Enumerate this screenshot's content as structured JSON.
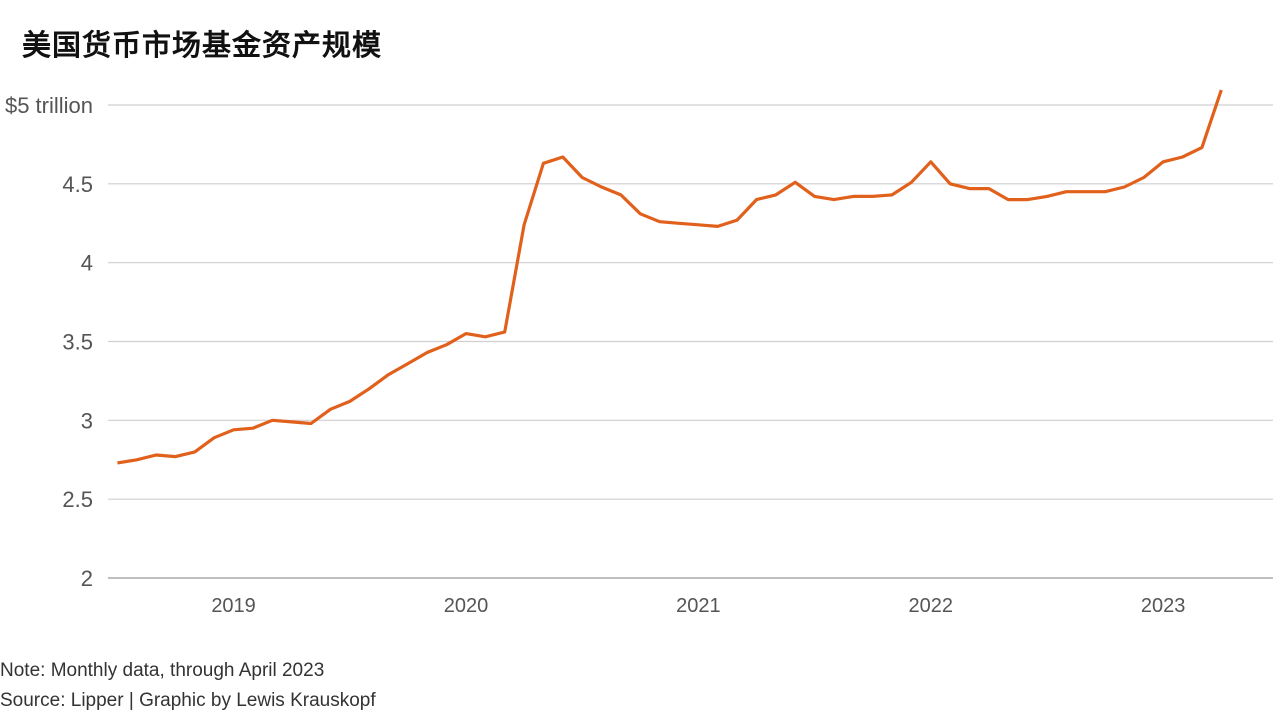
{
  "chart_data": {
    "type": "line",
    "title": "美国货币市场基金资产规模",
    "y_top_label": "$5 trillion",
    "y_ticks": [
      {
        "value": 2,
        "label": "2"
      },
      {
        "value": 2.5,
        "label": "2.5"
      },
      {
        "value": 3,
        "label": "3"
      },
      {
        "value": 3.5,
        "label": "3.5"
      },
      {
        "value": 4,
        "label": "4"
      },
      {
        "value": 4.5,
        "label": "4.5"
      },
      {
        "value": 5,
        "label": "$5 trillion"
      }
    ],
    "ylim": [
      2,
      5.1
    ],
    "x_ticks": [
      "2019",
      "2020",
      "2021",
      "2022",
      "2023"
    ],
    "xlim": [
      "2018-06",
      "2023-06"
    ],
    "grid": true,
    "color": "#e0601c",
    "series": [
      {
        "x": [
          "2018-07",
          "2018-08",
          "2018-09",
          "2018-10",
          "2018-11",
          "2018-12",
          "2019-01",
          "2019-02",
          "2019-03",
          "2019-04",
          "2019-05",
          "2019-06",
          "2019-07",
          "2019-08",
          "2019-09",
          "2019-10",
          "2019-11",
          "2019-12",
          "2020-01",
          "2020-02",
          "2020-03",
          "2020-04",
          "2020-05",
          "2020-06",
          "2020-07",
          "2020-08",
          "2020-09",
          "2020-10",
          "2020-11",
          "2020-12",
          "2021-01",
          "2021-02",
          "2021-03",
          "2021-04",
          "2021-05",
          "2021-06",
          "2021-07",
          "2021-08",
          "2021-09",
          "2021-10",
          "2021-11",
          "2021-12",
          "2022-01",
          "2022-02",
          "2022-03",
          "2022-04",
          "2022-05",
          "2022-06",
          "2022-07",
          "2022-08",
          "2022-09",
          "2022-10",
          "2022-11",
          "2022-12",
          "2023-01",
          "2023-02",
          "2023-03",
          "2023-04"
        ],
        "values": [
          2.73,
          2.75,
          2.78,
          2.77,
          2.8,
          2.89,
          2.94,
          2.95,
          3.0,
          2.99,
          2.98,
          3.07,
          3.12,
          3.2,
          3.29,
          3.36,
          3.43,
          3.48,
          3.55,
          3.53,
          3.56,
          4.24,
          4.63,
          4.67,
          4.54,
          4.48,
          4.43,
          4.31,
          4.26,
          4.25,
          4.24,
          4.23,
          4.27,
          4.4,
          4.43,
          4.51,
          4.42,
          4.4,
          4.42,
          4.42,
          4.43,
          4.51,
          4.64,
          4.5,
          4.47,
          4.47,
          4.4,
          4.4,
          4.42,
          4.45,
          4.45,
          4.45,
          4.48,
          4.54,
          4.64,
          4.67,
          4.73,
          5.1
        ]
      }
    ]
  },
  "footer": {
    "note": "Note: Monthly data, through April 2023",
    "source": "Source: Lipper | Graphic by Lewis Krauskopf"
  }
}
